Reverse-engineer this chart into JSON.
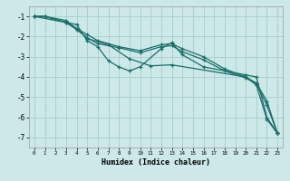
{
  "xlabel": "Humidex (Indice chaleur)",
  "background_color": "#cce8e8",
  "grid_color": "#aacccc",
  "line_color": "#1a6e6a",
  "xlim": [
    -0.5,
    23.5
  ],
  "ylim": [
    -7.5,
    -0.5
  ],
  "yticks": [
    -7,
    -6,
    -5,
    -4,
    -3,
    -2,
    -1
  ],
  "xticks": [
    0,
    1,
    2,
    3,
    4,
    5,
    6,
    7,
    8,
    9,
    10,
    11,
    12,
    13,
    14,
    15,
    16,
    17,
    18,
    19,
    20,
    21,
    22,
    23
  ],
  "series": [
    {
      "x": [
        0,
        1,
        3,
        4,
        5,
        6,
        7,
        8,
        9,
        10,
        12,
        13,
        14,
        16,
        20,
        21,
        22,
        23
      ],
      "y": [
        -1,
        -1,
        -1.3,
        -1.4,
        -2.2,
        -2.5,
        -3.2,
        -3.5,
        -3.7,
        -3.5,
        -2.6,
        -2.3,
        -2.9,
        -3.5,
        -3.9,
        -4.0,
        -6.0,
        -6.8
      ]
    },
    {
      "x": [
        0,
        1,
        3,
        4,
        5,
        6,
        8,
        10,
        12,
        13,
        14,
        16,
        18,
        20,
        21,
        22,
        23
      ],
      "y": [
        -1,
        -1,
        -1.2,
        -1.6,
        -1.9,
        -2.2,
        -2.5,
        -2.7,
        -2.4,
        -2.35,
        -2.6,
        -3.0,
        -3.6,
        -4.0,
        -4.3,
        -5.2,
        -6.8
      ]
    },
    {
      "x": [
        0,
        1,
        3,
        4,
        5,
        6,
        8,
        10,
        12,
        13,
        14,
        16,
        18,
        20,
        21,
        22,
        23
      ],
      "y": [
        -1,
        -1,
        -1.3,
        -1.65,
        -2.05,
        -2.35,
        -2.55,
        -2.8,
        -2.5,
        -2.45,
        -2.75,
        -3.15,
        -3.7,
        -4.05,
        -4.35,
        -5.4,
        -6.8
      ]
    },
    {
      "x": [
        0,
        3,
        4,
        5,
        7,
        9,
        11,
        13,
        20,
        21,
        22,
        23
      ],
      "y": [
        -1,
        -1.3,
        -1.6,
        -2.1,
        -2.4,
        -3.1,
        -3.45,
        -3.4,
        -4.0,
        -4.4,
        -6.1,
        -6.8
      ]
    }
  ]
}
